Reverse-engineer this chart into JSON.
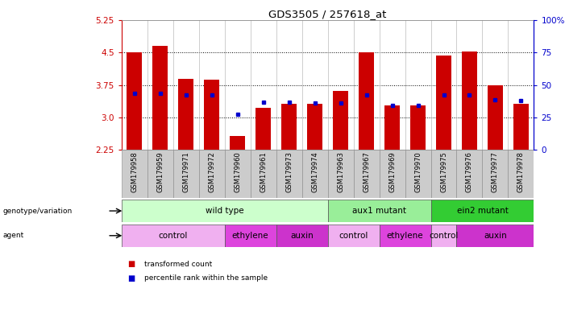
{
  "title": "GDS3505 / 257618_at",
  "samples": [
    "GSM179958",
    "GSM179959",
    "GSM179971",
    "GSM179972",
    "GSM179960",
    "GSM179961",
    "GSM179973",
    "GSM179974",
    "GSM179963",
    "GSM179967",
    "GSM179969",
    "GSM179970",
    "GSM179975",
    "GSM179976",
    "GSM179977",
    "GSM179978"
  ],
  "red_values": [
    4.5,
    4.65,
    3.9,
    3.87,
    2.57,
    3.23,
    3.32,
    3.32,
    3.62,
    4.5,
    3.27,
    3.27,
    4.43,
    4.52,
    3.75,
    3.32
  ],
  "blue_values": [
    3.55,
    3.55,
    3.52,
    3.52,
    3.07,
    3.35,
    3.35,
    3.34,
    3.34,
    3.52,
    3.28,
    3.28,
    3.52,
    3.52,
    3.4,
    3.38
  ],
  "ymin": 2.25,
  "ymax": 5.25,
  "yticks": [
    2.25,
    3.0,
    3.75,
    4.5,
    5.25
  ],
  "right_ytick_vals": [
    0,
    25,
    50,
    75,
    100
  ],
  "right_ylabels": [
    "0",
    "25",
    "50",
    "75",
    "100%"
  ],
  "bar_color": "#cc0000",
  "dot_color": "#0000cc",
  "left_axis_color": "#cc0000",
  "right_axis_color": "#0000cc",
  "tick_label_bg": "#cccccc",
  "genotype_groups": [
    {
      "label": "wild type",
      "start": 0,
      "end": 7,
      "color": "#ccffcc"
    },
    {
      "label": "aux1 mutant",
      "start": 8,
      "end": 11,
      "color": "#99ee99"
    },
    {
      "label": "ein2 mutant",
      "start": 12,
      "end": 15,
      "color": "#33cc33"
    }
  ],
  "agent_groups": [
    {
      "label": "control",
      "start": 0,
      "end": 3,
      "color": "#f0b0f0"
    },
    {
      "label": "ethylene",
      "start": 4,
      "end": 5,
      "color": "#e060e0"
    },
    {
      "label": "auxin",
      "start": 6,
      "end": 7,
      "color": "#cc33cc"
    },
    {
      "label": "control",
      "start": 8,
      "end": 9,
      "color": "#f0b0f0"
    },
    {
      "label": "ethylene",
      "start": 10,
      "end": 11,
      "color": "#e060e0"
    },
    {
      "label": "control",
      "start": 12,
      "end": 12,
      "color": "#f0b0f0"
    },
    {
      "label": "auxin",
      "start": 13,
      "end": 15,
      "color": "#cc33cc"
    }
  ]
}
